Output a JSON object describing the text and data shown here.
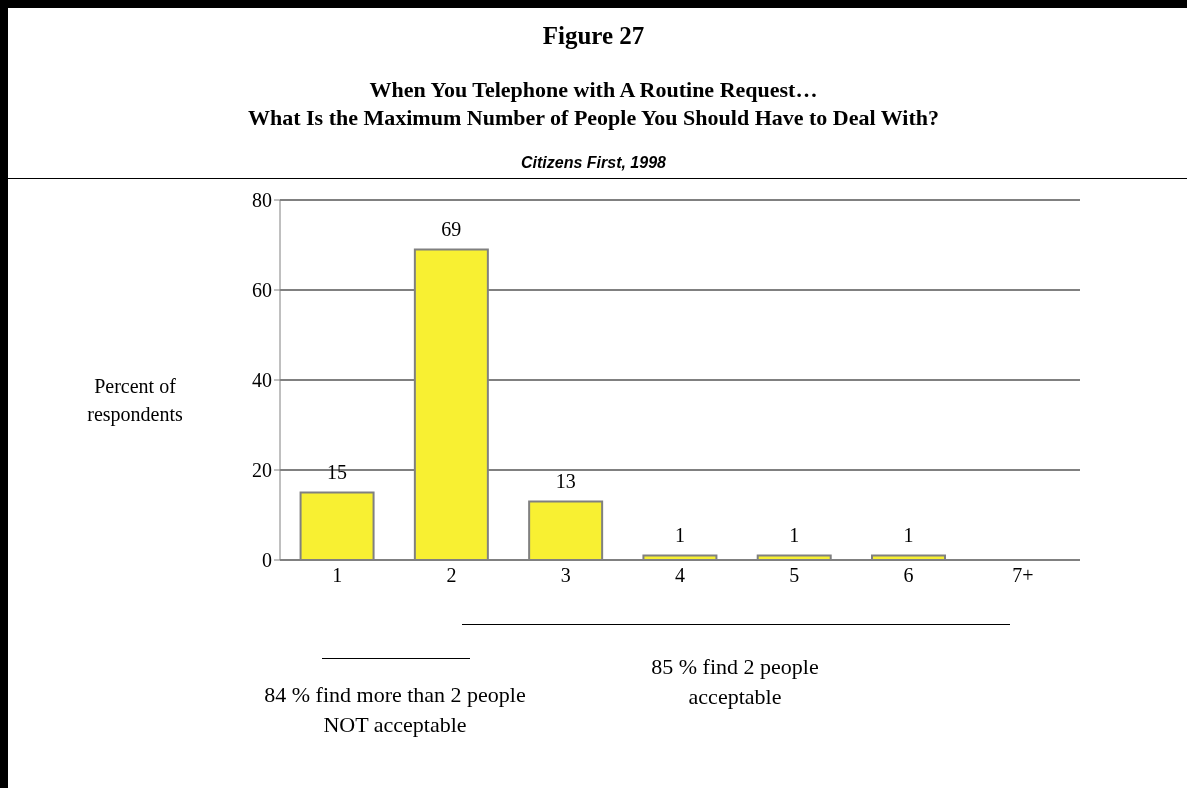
{
  "chart_data": {
    "type": "bar",
    "title": "Figure 27",
    "subtitle": "When You Telephone with A Routine Request…\nWhat Is the Maximum Number of People You Should Have to Deal With?",
    "annotations": [
      "Citizens First, 1998",
      "84 % find more than 2 people NOT acceptable",
      "85 % find 2 people acceptable"
    ],
    "ylabel": "Percent of respondents",
    "categories": [
      "1",
      "2",
      "3",
      "4",
      "5",
      "6",
      "7+"
    ],
    "values": [
      15,
      69,
      13,
      1,
      1,
      1,
      null
    ],
    "value_labels": [
      "15",
      "69",
      "13",
      "1",
      "1",
      "1",
      null
    ],
    "color": "#f8f032",
    "ylim": [
      0,
      80
    ],
    "yticks": [
      0,
      20,
      40,
      60,
      80
    ],
    "grid": "y"
  }
}
